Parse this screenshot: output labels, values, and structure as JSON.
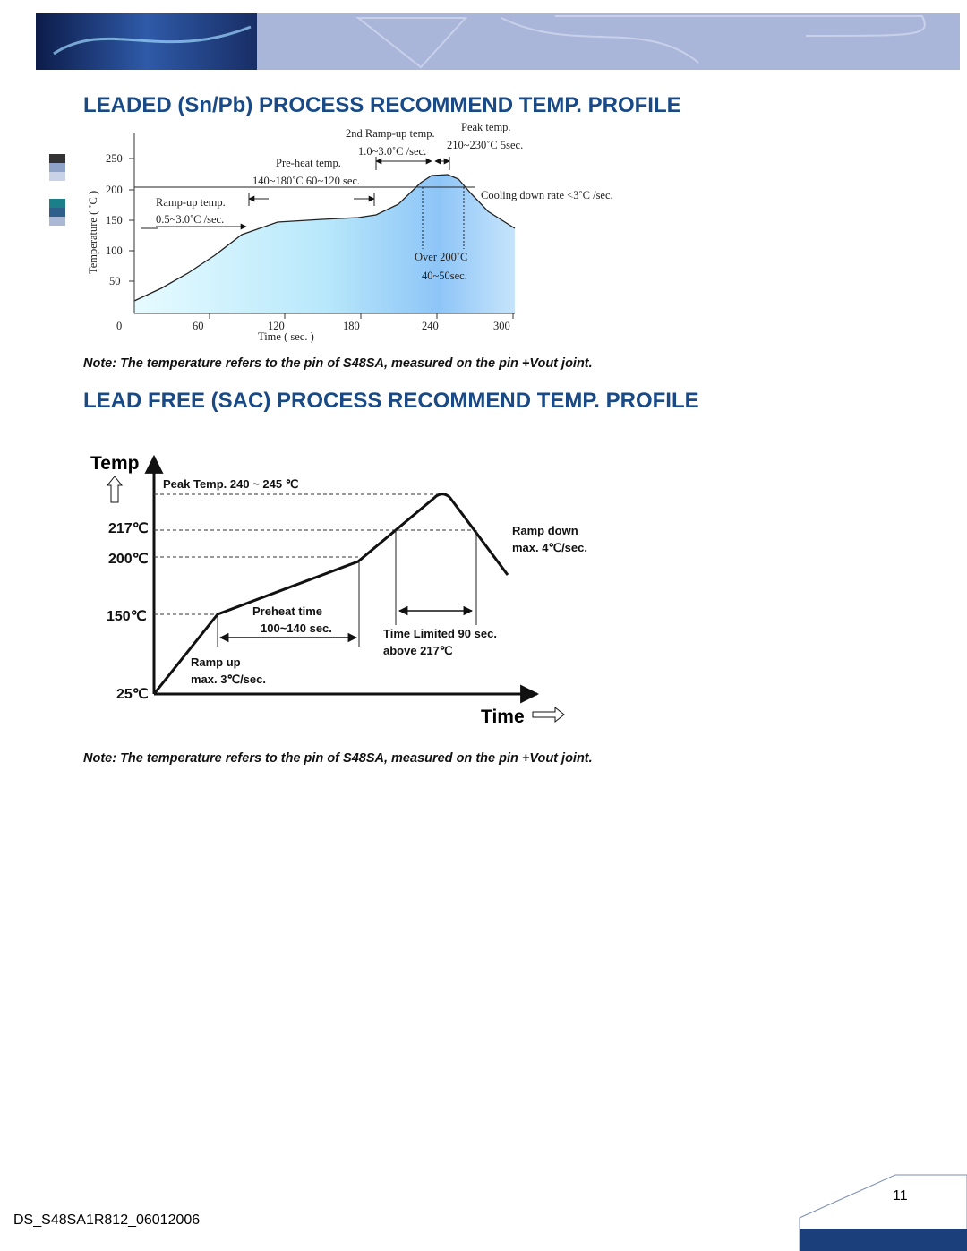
{
  "leaded": {
    "title": "LEADED (Sn/Pb) PROCESS RECOMMEND TEMP. PROFILE",
    "chart": {
      "y_label": "Temperature ( ˚C )",
      "x_label": "Time ( sec. )",
      "yticks": [
        250,
        200,
        150,
        100,
        50
      ],
      "xticks": [
        0,
        60,
        120,
        180,
        240,
        300
      ],
      "peak_title": "Peak temp.",
      "peak_detail": "210~230˚C 5sec.",
      "ramp2_title": "2nd Ramp-up temp.",
      "ramp2_detail": "1.0~3.0˚C /sec.",
      "preheat_title": "Pre-heat temp.",
      "preheat_detail": "140~180˚C 60~120 sec.",
      "ramp_title": "Ramp-up temp.",
      "ramp_detail": "0.5~3.0˚C /sec.",
      "cooling": "Cooling down rate <3˚C /sec.",
      "over_title": "Over 200˚C",
      "over_detail": "40~50sec."
    },
    "note": "Note: The temperature refers to the pin of S48SA, measured on the pin +Vout joint."
  },
  "leadfree": {
    "title": "LEAD FREE (SAC) PROCESS RECOMMEND TEMP. PROFILE",
    "chart": {
      "y_label": "Temp",
      "x_label": "Time",
      "levels": [
        "217℃",
        "200℃",
        "150℃",
        "25℃"
      ],
      "peak": "Peak Temp. 240 ~ 245 ℃",
      "ramp_down_title": "Ramp down",
      "ramp_down_detail": "max. 4℃/sec.",
      "preheat_title": "Preheat time",
      "preheat_detail": "100~140 sec.",
      "time_limited_title": "Time Limited 90 sec.",
      "time_limited_detail": "above 217℃",
      "ramp_up_title": "Ramp up",
      "ramp_up_detail": "max. 3℃/sec."
    },
    "note": "Note: The temperature refers to the pin of S48SA, measured on the pin +Vout joint."
  },
  "footer": {
    "doc_id": "DS_S48SA1R812_06012006",
    "page_number": "11"
  }
}
